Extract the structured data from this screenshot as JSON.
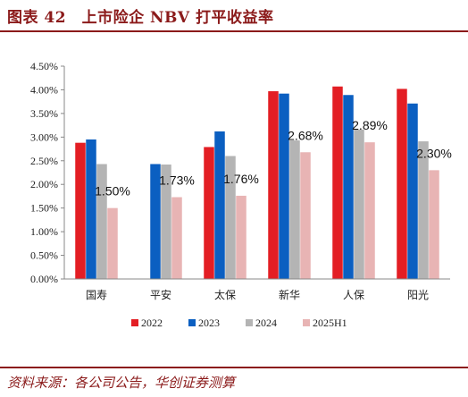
{
  "header": {
    "title": "图表 42　上市险企 NBV 打平收益率"
  },
  "footer": {
    "source": "资料来源：各公司公告，华创证券测算"
  },
  "chart_data": {
    "type": "bar",
    "categories": [
      "国寿",
      "平安",
      "太保",
      "新华",
      "人保",
      "阳光"
    ],
    "series": [
      {
        "name": "2022",
        "color": "#e31e24",
        "values": [
          2.88,
          null,
          2.79,
          3.97,
          4.07,
          4.02
        ]
      },
      {
        "name": "2023",
        "color": "#0b5fc1",
        "values": [
          2.95,
          2.43,
          3.12,
          3.92,
          3.89,
          3.71
        ]
      },
      {
        "name": "2024",
        "color": "#b4b4b4",
        "values": [
          2.43,
          2.42,
          2.6,
          2.93,
          3.16,
          2.91
        ]
      },
      {
        "name": "2025H1",
        "color": "#e8b4b4",
        "values": [
          1.5,
          1.73,
          1.76,
          2.68,
          2.89,
          2.3
        ]
      }
    ],
    "data_labels": [
      "1.50%",
      "1.73%",
      "1.76%",
      "2.68%",
      "2.89%",
      "2.30%"
    ],
    "y_ticks": [
      "0.00%",
      "0.50%",
      "1.00%",
      "1.50%",
      "2.00%",
      "2.50%",
      "3.00%",
      "3.50%",
      "4.00%",
      "4.50%"
    ],
    "ylim": [
      0,
      4.5
    ],
    "grid": false,
    "legend_position": "bottom"
  }
}
